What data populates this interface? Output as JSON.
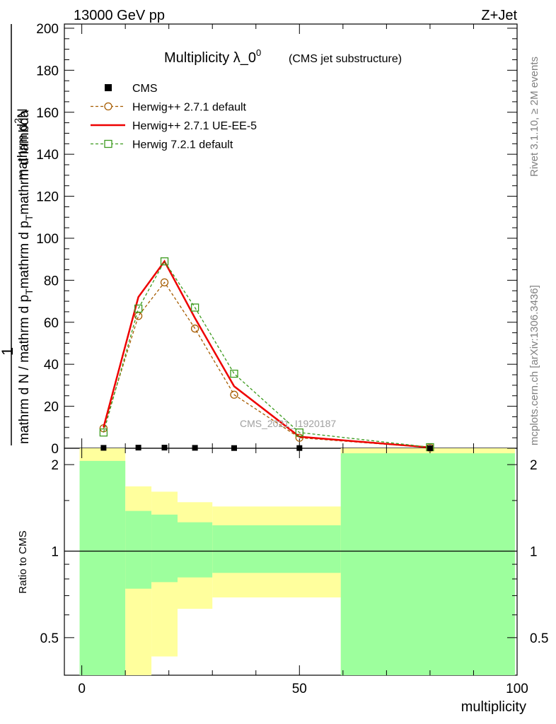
{
  "header": {
    "left": "13000 GeV pp",
    "right": "Z+Jet"
  },
  "side_labels": {
    "rivet": "Rivet 3.1.10, ≥ 2M events",
    "mcplots": "mcplots.cern.ch [arXiv:1306.3436]"
  },
  "chart_data": {
    "type": "line",
    "title": "Multiplicity λ_0",
    "title_superscript": "0",
    "subtitle": "(CMS jet substructure)",
    "watermark": "CMS_2021_I1920187",
    "xlabel": "multiplicity",
    "ylabel_top": {
      "numerator": "1",
      "denominator": "mathrm d N / mathrm d p",
      "denominator_sub": "T",
      "numerator_rest": "mathrm d",
      "note": "mathrm d^2 N / mathrm d p_T mathrm d lambda"
    },
    "ylabel_ratio": "Ratio to CMS",
    "xlim": [
      -4,
      100
    ],
    "ylim": [
      0,
      202
    ],
    "ratio_ylim": [
      0.37,
      2.28
    ],
    "x_ticks": [
      "0",
      "50",
      "100"
    ],
    "y_ticks": [
      "0",
      "20",
      "40",
      "60",
      "80",
      "100",
      "120",
      "140",
      "160",
      "180",
      "200"
    ],
    "ratio_ticks": [
      "0.5",
      "1",
      "2"
    ],
    "legend": [
      {
        "name": "CMS",
        "color": "#000000",
        "marker": "square-filled",
        "line": "none"
      },
      {
        "name": "Herwig++ 2.7.1 default",
        "color": "#a65c00",
        "marker": "circle-open",
        "line": "dashed"
      },
      {
        "name": "Herwig++ 2.7.1 UE-EE-5",
        "color": "#ee0000",
        "marker": "none",
        "line": "solid"
      },
      {
        "name": "Herwig 7.2.1 default",
        "color": "#3c9a1e",
        "marker": "square-open",
        "line": "dashed"
      }
    ],
    "cms_points": {
      "x": [
        5,
        13,
        19,
        26,
        35,
        50,
        80
      ],
      "y": [
        0.2,
        0.3,
        0.3,
        0.2,
        0.1,
        0.1,
        0.0
      ]
    },
    "series": [
      {
        "name": "Herwig++ 2.7.1 default",
        "x": [
          5,
          13,
          19,
          26,
          35,
          50,
          80
        ],
        "y": [
          9.5,
          63,
          79,
          57,
          25.5,
          5,
          0.3
        ]
      },
      {
        "name": "Herwig++ 2.7.1 UE-EE-5",
        "x": [
          5,
          13,
          19,
          26,
          35,
          50,
          80
        ],
        "y": [
          10,
          72,
          89,
          62,
          29.5,
          5.5,
          0.4
        ]
      },
      {
        "name": "Herwig 7.2.1 default",
        "x": [
          5,
          13,
          19,
          26,
          35,
          50,
          80
        ],
        "y": [
          7.5,
          66.5,
          89,
          67,
          35.5,
          7.5,
          0.5
        ]
      }
    ],
    "ratio_bands": [
      {
        "x0": -0.5,
        "x1": 10,
        "green_lo": 0.37,
        "green_hi": 2.06,
        "yellow_lo": 0.37,
        "yellow_hi": 2.28
      },
      {
        "x0": 10,
        "x1": 16,
        "green_lo": 0.74,
        "green_hi": 1.38,
        "yellow_lo": 0.37,
        "yellow_hi": 1.68
      },
      {
        "x0": 16,
        "x1": 22,
        "green_lo": 0.78,
        "green_hi": 1.34,
        "yellow_lo": 0.43,
        "yellow_hi": 1.61
      },
      {
        "x0": 22,
        "x1": 30,
        "green_lo": 0.81,
        "green_hi": 1.26,
        "yellow_lo": 0.63,
        "yellow_hi": 1.48
      },
      {
        "x0": 30,
        "x1": 59.5,
        "green_lo": 0.84,
        "green_hi": 1.23,
        "yellow_lo": 0.69,
        "yellow_hi": 1.43
      },
      {
        "x0": 59.5,
        "x1": 99.5,
        "green_lo": 0.37,
        "green_hi": 2.19,
        "yellow_lo": 0.37,
        "yellow_hi": 2.28
      }
    ],
    "colors": {
      "green": "#9dff9d",
      "yellow": "#ffff9d",
      "reference_line": "#000000"
    }
  }
}
